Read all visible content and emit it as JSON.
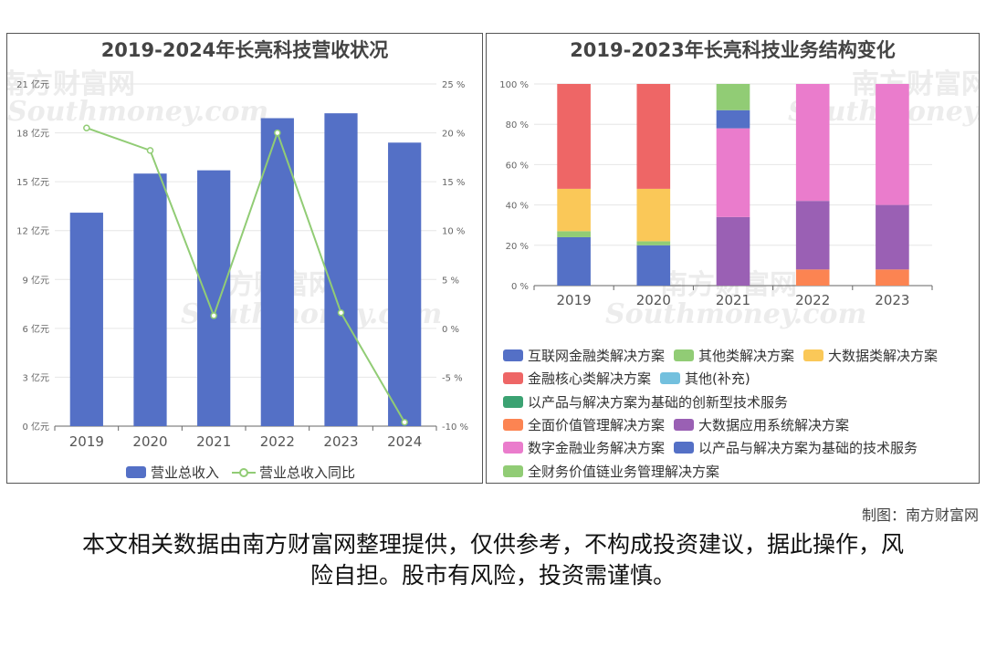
{
  "left_chart": {
    "title": "2019-2024年长亮科技营收状况",
    "legend": {
      "bar": "营业总收入",
      "line": "营业总收入同比"
    },
    "colors": {
      "bar": "#5470c6",
      "line": "#91cc75"
    }
  },
  "right_chart": {
    "title": "2019-2023年长亮科技业务结构变化",
    "legend": [
      {
        "label": "互联网金融类解决方案",
        "color": "#5470c6"
      },
      {
        "label": "其他类解决方案",
        "color": "#91cc75"
      },
      {
        "label": "大数据类解决方案",
        "color": "#fac858"
      },
      {
        "label": "金融核心类解决方案",
        "color": "#ee6666"
      },
      {
        "label": "其他(补充)",
        "color": "#73c0de"
      },
      {
        "label": "以产品与解决方案为基础的创新型技术服务",
        "color": "#3ba272"
      },
      {
        "label": "全面价值管理解决方案",
        "color": "#fc8452"
      },
      {
        "label": "大数据应用系统解决方案",
        "color": "#9a60b4"
      },
      {
        "label": "数字金融业务解决方案",
        "color": "#ea7ccc"
      },
      {
        "label": "以产品与解决方案为基础的技术服务",
        "color": "#5470c6"
      },
      {
        "label": "全财务价值链业务管理解决方案",
        "color": "#91cc75"
      }
    ]
  },
  "chart_data": [
    {
      "type": "bar",
      "title": "2019-2024年长亮科技营收状况",
      "categories": [
        "2019",
        "2020",
        "2021",
        "2022",
        "2023",
        "2024"
      ],
      "series": [
        {
          "name": "营业总收入",
          "type": "bar",
          "axis": "left",
          "values": [
            13.1,
            15.5,
            15.7,
            18.9,
            19.2,
            17.4
          ]
        },
        {
          "name": "营业总收入同比",
          "type": "line",
          "axis": "right",
          "values": [
            20.5,
            18.2,
            1.3,
            20.0,
            1.6,
            -9.6
          ]
        }
      ],
      "y_left": {
        "ticks": [
          "0 亿元",
          "3 亿元",
          "6 亿元",
          "9 亿元",
          "12 亿元",
          "15 亿元",
          "18 亿元",
          "21 亿元"
        ],
        "ylim": [
          0,
          21
        ]
      },
      "y_right": {
        "ticks": [
          "-10 %",
          "-5 %",
          "0 %",
          "5 %",
          "10 %",
          "15 %",
          "20 %",
          "25 %"
        ],
        "ylim": [
          -10,
          25
        ]
      },
      "legend_position": "bottom"
    },
    {
      "type": "bar",
      "stacked": true,
      "title": "2019-2023年长亮科技业务结构变化",
      "categories": [
        "2019",
        "2020",
        "2021",
        "2022",
        "2023"
      ],
      "y_ticks": [
        "0 %",
        "20 %",
        "40 %",
        "60 %",
        "80 %",
        "100 %"
      ],
      "ylim": [
        0,
        100
      ],
      "legend_position": "bottom",
      "series": [
        {
          "name": "互联网金融类解决方案",
          "values": [
            24,
            20,
            0,
            0,
            0
          ]
        },
        {
          "name": "其他类解决方案",
          "values": [
            3,
            2,
            0,
            0,
            0
          ]
        },
        {
          "name": "大数据类解决方案",
          "values": [
            21,
            26,
            0,
            0,
            0
          ]
        },
        {
          "name": "金融核心类解决方案",
          "values": [
            52,
            52,
            0,
            0,
            0
          ]
        },
        {
          "name": "其他(补充)",
          "values": [
            0,
            0,
            0,
            0,
            0
          ]
        },
        {
          "name": "以产品与解决方案为基础的创新型技术服务",
          "values": [
            0,
            0,
            0,
            0,
            0
          ]
        },
        {
          "name": "全面价值管理解决方案",
          "values": [
            0,
            0,
            0,
            8,
            8
          ]
        },
        {
          "name": "大数据应用系统解决方案",
          "values": [
            0,
            0,
            34,
            34,
            32
          ]
        },
        {
          "name": "数字金融业务解决方案",
          "values": [
            0,
            0,
            44,
            58,
            60
          ]
        },
        {
          "name": "以产品与解决方案为基础的技术服务",
          "values": [
            0,
            0,
            9,
            0,
            0
          ]
        },
        {
          "name": "全财务价值链业务管理解决方案",
          "values": [
            0,
            0,
            13,
            0,
            0
          ]
        }
      ]
    }
  ],
  "watermark": {
    "cn": "南方财富网",
    "en": "Southmoney.com"
  },
  "footer": {
    "credit": "制图：南方财富网",
    "disclaimer": "本文相关数据由南方财富网整理提供，仅供参考，不构成投资建议，据此操作，风险自担。股市有风险，投资需谨慎。"
  }
}
